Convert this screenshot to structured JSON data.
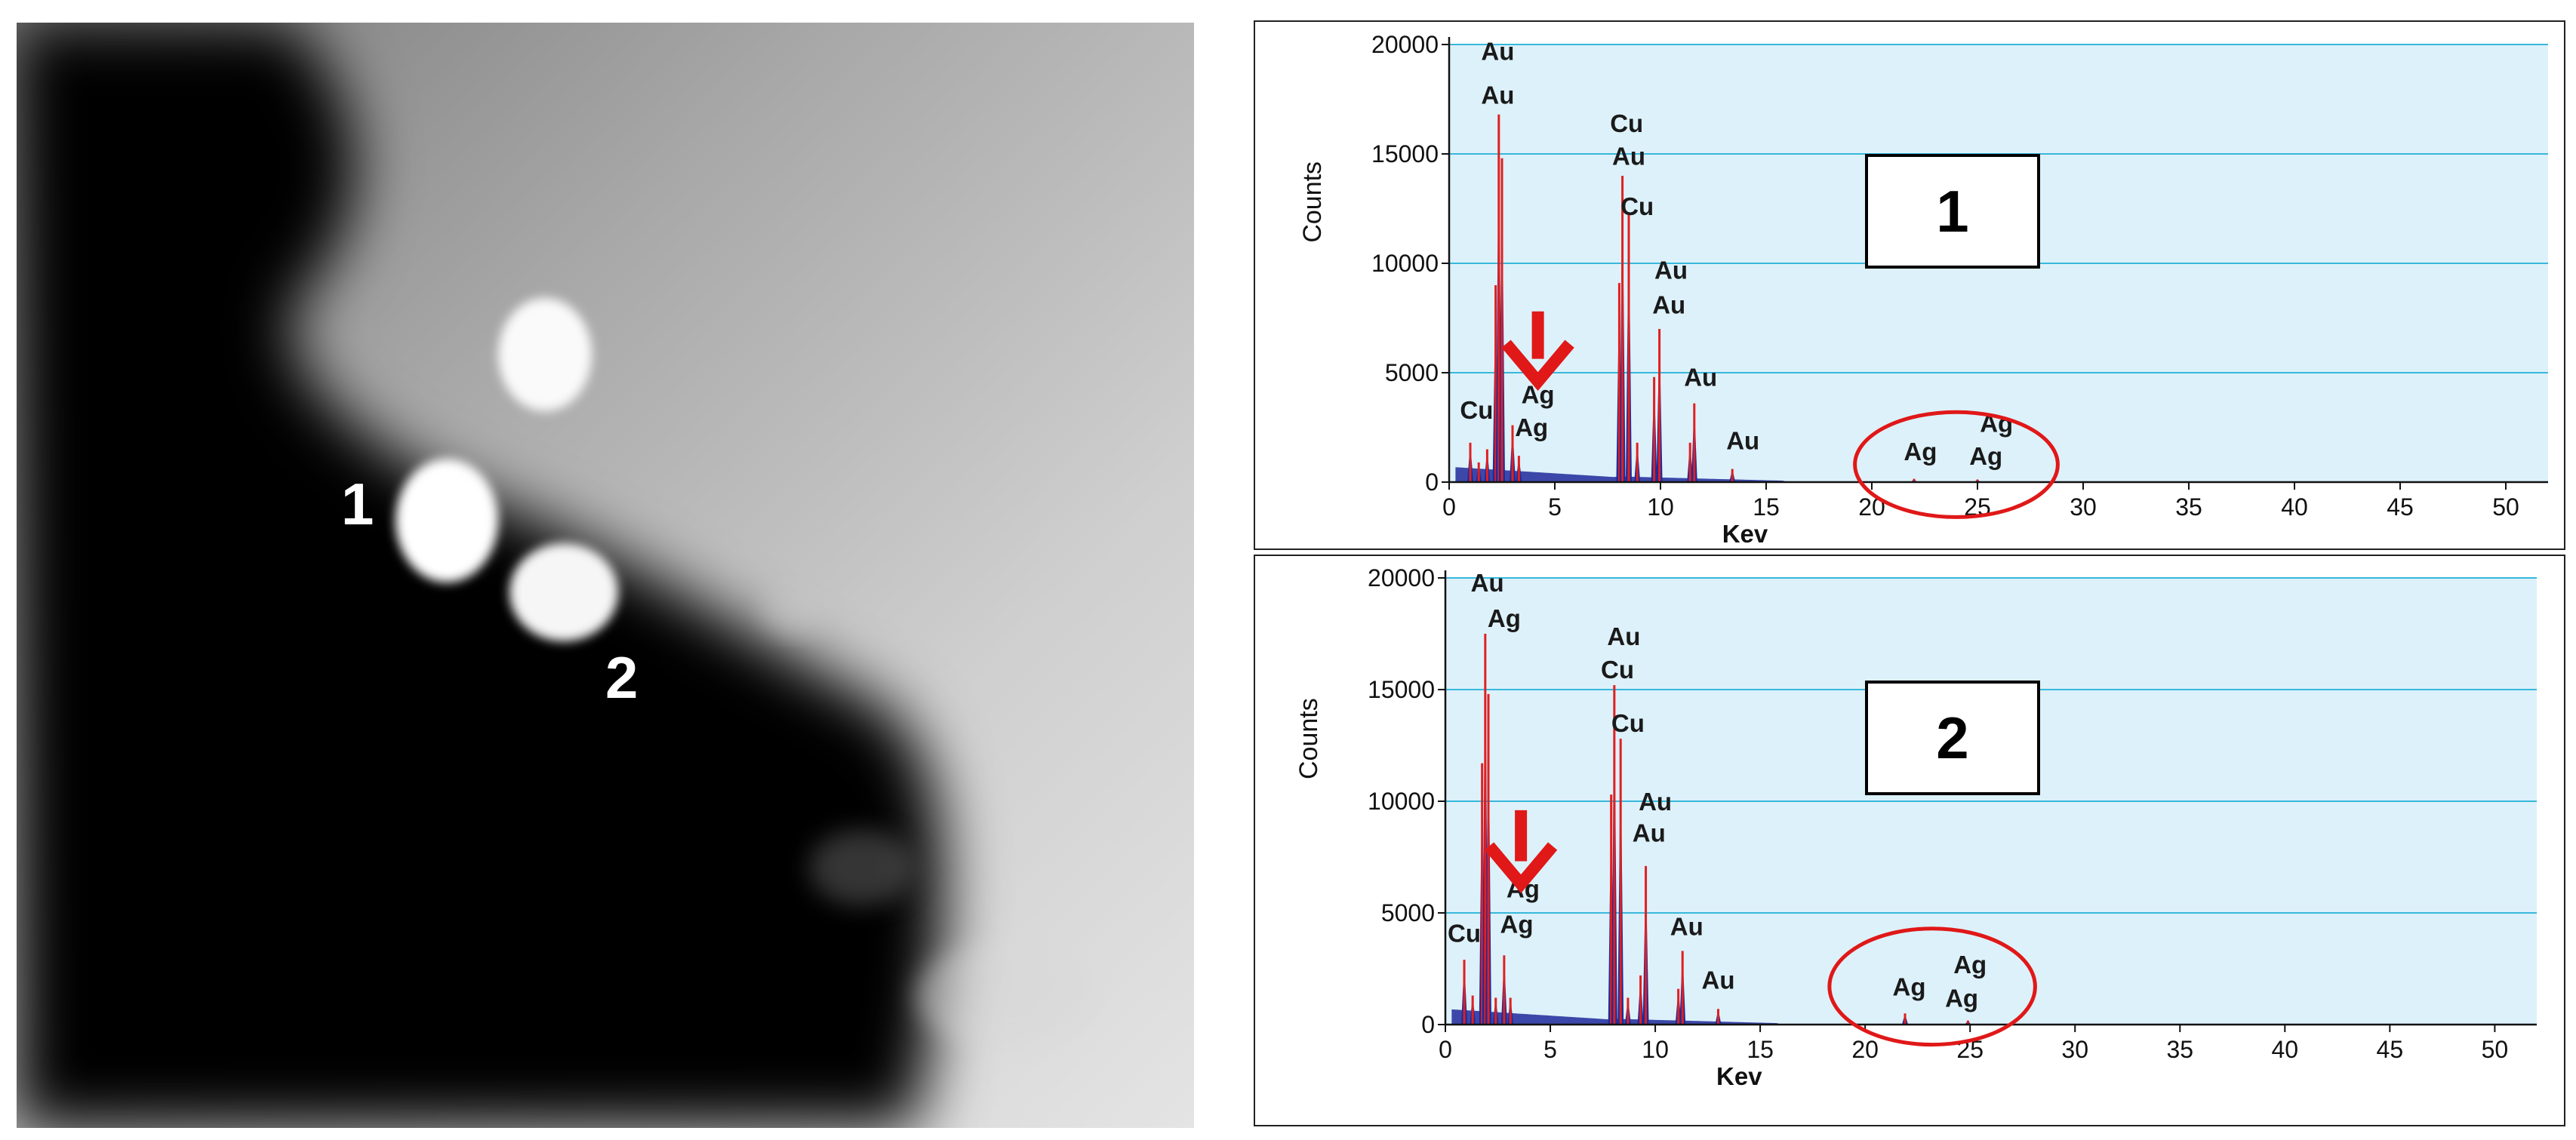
{
  "micrograph": {
    "point_labels": [
      "1",
      "2"
    ]
  },
  "colors": {
    "plot_background": "#ddf1fa",
    "gridline": "#38b8dc",
    "peak_fill": "#1f2a9a",
    "peak_line": "#e02020",
    "annotation": "#e01818"
  },
  "chart_data": [
    {
      "type": "area",
      "panel_label": "1",
      "xlabel": "Kev",
      "ylabel": "Counts",
      "xlim": [
        0,
        52
      ],
      "ylim": [
        0,
        20000
      ],
      "x_ticks": [
        "0",
        "5",
        "10",
        "15",
        "20",
        "25",
        "30",
        "35",
        "40",
        "45",
        "50"
      ],
      "y_ticks": [
        "0",
        "5000",
        "10000",
        "15000",
        "20000"
      ],
      "grid": true,
      "peaks": [
        {
          "x": 1.0,
          "y": 1800
        },
        {
          "x": 1.4,
          "y": 900
        },
        {
          "x": 1.8,
          "y": 1500
        },
        {
          "x": 2.2,
          "y": 9000
        },
        {
          "x": 2.35,
          "y": 16800
        },
        {
          "x": 2.5,
          "y": 14800
        },
        {
          "x": 3.0,
          "y": 2600
        },
        {
          "x": 3.3,
          "y": 1200
        },
        {
          "x": 8.05,
          "y": 9100
        },
        {
          "x": 8.2,
          "y": 14000
        },
        {
          "x": 8.5,
          "y": 12300
        },
        {
          "x": 8.9,
          "y": 1800
        },
        {
          "x": 9.7,
          "y": 4800
        },
        {
          "x": 9.95,
          "y": 7000
        },
        {
          "x": 11.4,
          "y": 1800
        },
        {
          "x": 11.6,
          "y": 3600
        },
        {
          "x": 13.4,
          "y": 600
        },
        {
          "x": 22.0,
          "y": 150
        },
        {
          "x": 25.0,
          "y": 120
        }
      ],
      "peak_labels": [
        {
          "text": "Au",
          "x": 2.3,
          "y": 19300
        },
        {
          "text": "Au",
          "x": 2.3,
          "y": 17300
        },
        {
          "text": "Cu",
          "x": 1.3,
          "y": 2900
        },
        {
          "text": "Ag",
          "x": 4.2,
          "y": 3600
        },
        {
          "text": "Ag",
          "x": 3.9,
          "y": 2100
        },
        {
          "text": "Cu",
          "x": 8.4,
          "y": 16000
        },
        {
          "text": "Au",
          "x": 8.5,
          "y": 14500
        },
        {
          "text": "Cu",
          "x": 8.9,
          "y": 12200
        },
        {
          "text": "Au",
          "x": 10.5,
          "y": 9300
        },
        {
          "text": "Au",
          "x": 10.4,
          "y": 7700
        },
        {
          "text": "Au",
          "x": 11.9,
          "y": 4400
        },
        {
          "text": "Au",
          "x": 13.9,
          "y": 1500
        },
        {
          "text": "Ag",
          "x": 25.9,
          "y": 2300
        },
        {
          "text": "Ag",
          "x": 22.3,
          "y": 1000
        },
        {
          "text": "Ag",
          "x": 25.4,
          "y": 800
        }
      ],
      "annotations": [
        {
          "type": "arrow",
          "x": 4.2,
          "y_start": 7800,
          "y_end": 4600
        },
        {
          "type": "ellipse",
          "cx": 24.0,
          "cy": 800,
          "rx": 4.8,
          "ry": 2400
        }
      ]
    },
    {
      "type": "area",
      "panel_label": "2",
      "xlabel": "Kev",
      "ylabel": "Counts",
      "xlim": [
        0,
        52
      ],
      "ylim": [
        0,
        20000
      ],
      "x_ticks": [
        "0",
        "5",
        "10",
        "15",
        "20",
        "25",
        "30",
        "35",
        "40",
        "45",
        "50"
      ],
      "y_ticks": [
        "0",
        "5000",
        "10000",
        "15000",
        "20000"
      ],
      "grid": true,
      "peaks": [
        {
          "x": 0.9,
          "y": 2900
        },
        {
          "x": 1.3,
          "y": 1300
        },
        {
          "x": 1.75,
          "y": 11700
        },
        {
          "x": 1.9,
          "y": 17500
        },
        {
          "x": 2.05,
          "y": 14800
        },
        {
          "x": 2.4,
          "y": 1200
        },
        {
          "x": 2.8,
          "y": 3100
        },
        {
          "x": 3.1,
          "y": 1200
        },
        {
          "x": 7.9,
          "y": 10300
        },
        {
          "x": 8.05,
          "y": 15200
        },
        {
          "x": 8.35,
          "y": 12800
        },
        {
          "x": 8.7,
          "y": 1200
        },
        {
          "x": 9.3,
          "y": 2200
        },
        {
          "x": 9.55,
          "y": 7100
        },
        {
          "x": 11.1,
          "y": 1600
        },
        {
          "x": 11.3,
          "y": 3300
        },
        {
          "x": 13.0,
          "y": 700
        },
        {
          "x": 21.9,
          "y": 500
        },
        {
          "x": 24.9,
          "y": 180
        }
      ],
      "peak_labels": [
        {
          "text": "Au",
          "x": 2.0,
          "y": 19400
        },
        {
          "text": "Ag",
          "x": 2.8,
          "y": 17800
        },
        {
          "text": "Au",
          "x": 8.5,
          "y": 17000
        },
        {
          "text": "Cu",
          "x": 8.2,
          "y": 15500
        },
        {
          "text": "Cu",
          "x": 8.7,
          "y": 13100
        },
        {
          "text": "Au",
          "x": 10.0,
          "y": 9600
        },
        {
          "text": "Au",
          "x": 9.7,
          "y": 8200
        },
        {
          "text": "Ag",
          "x": 3.7,
          "y": 5700
        },
        {
          "text": "Cu",
          "x": 0.9,
          "y": 3700
        },
        {
          "text": "Ag",
          "x": 3.4,
          "y": 4100
        },
        {
          "text": "Au",
          "x": 11.5,
          "y": 4000
        },
        {
          "text": "Au",
          "x": 13.0,
          "y": 1600
        },
        {
          "text": "Ag",
          "x": 25.0,
          "y": 2300
        },
        {
          "text": "Ag",
          "x": 22.1,
          "y": 1300
        },
        {
          "text": "Ag",
          "x": 24.6,
          "y": 800
        }
      ],
      "annotations": [
        {
          "type": "arrow",
          "x": 3.6,
          "y_start": 9600,
          "y_end": 6300
        },
        {
          "type": "ellipse",
          "cx": 23.2,
          "cy": 1700,
          "rx": 4.9,
          "ry": 2600
        }
      ]
    }
  ]
}
